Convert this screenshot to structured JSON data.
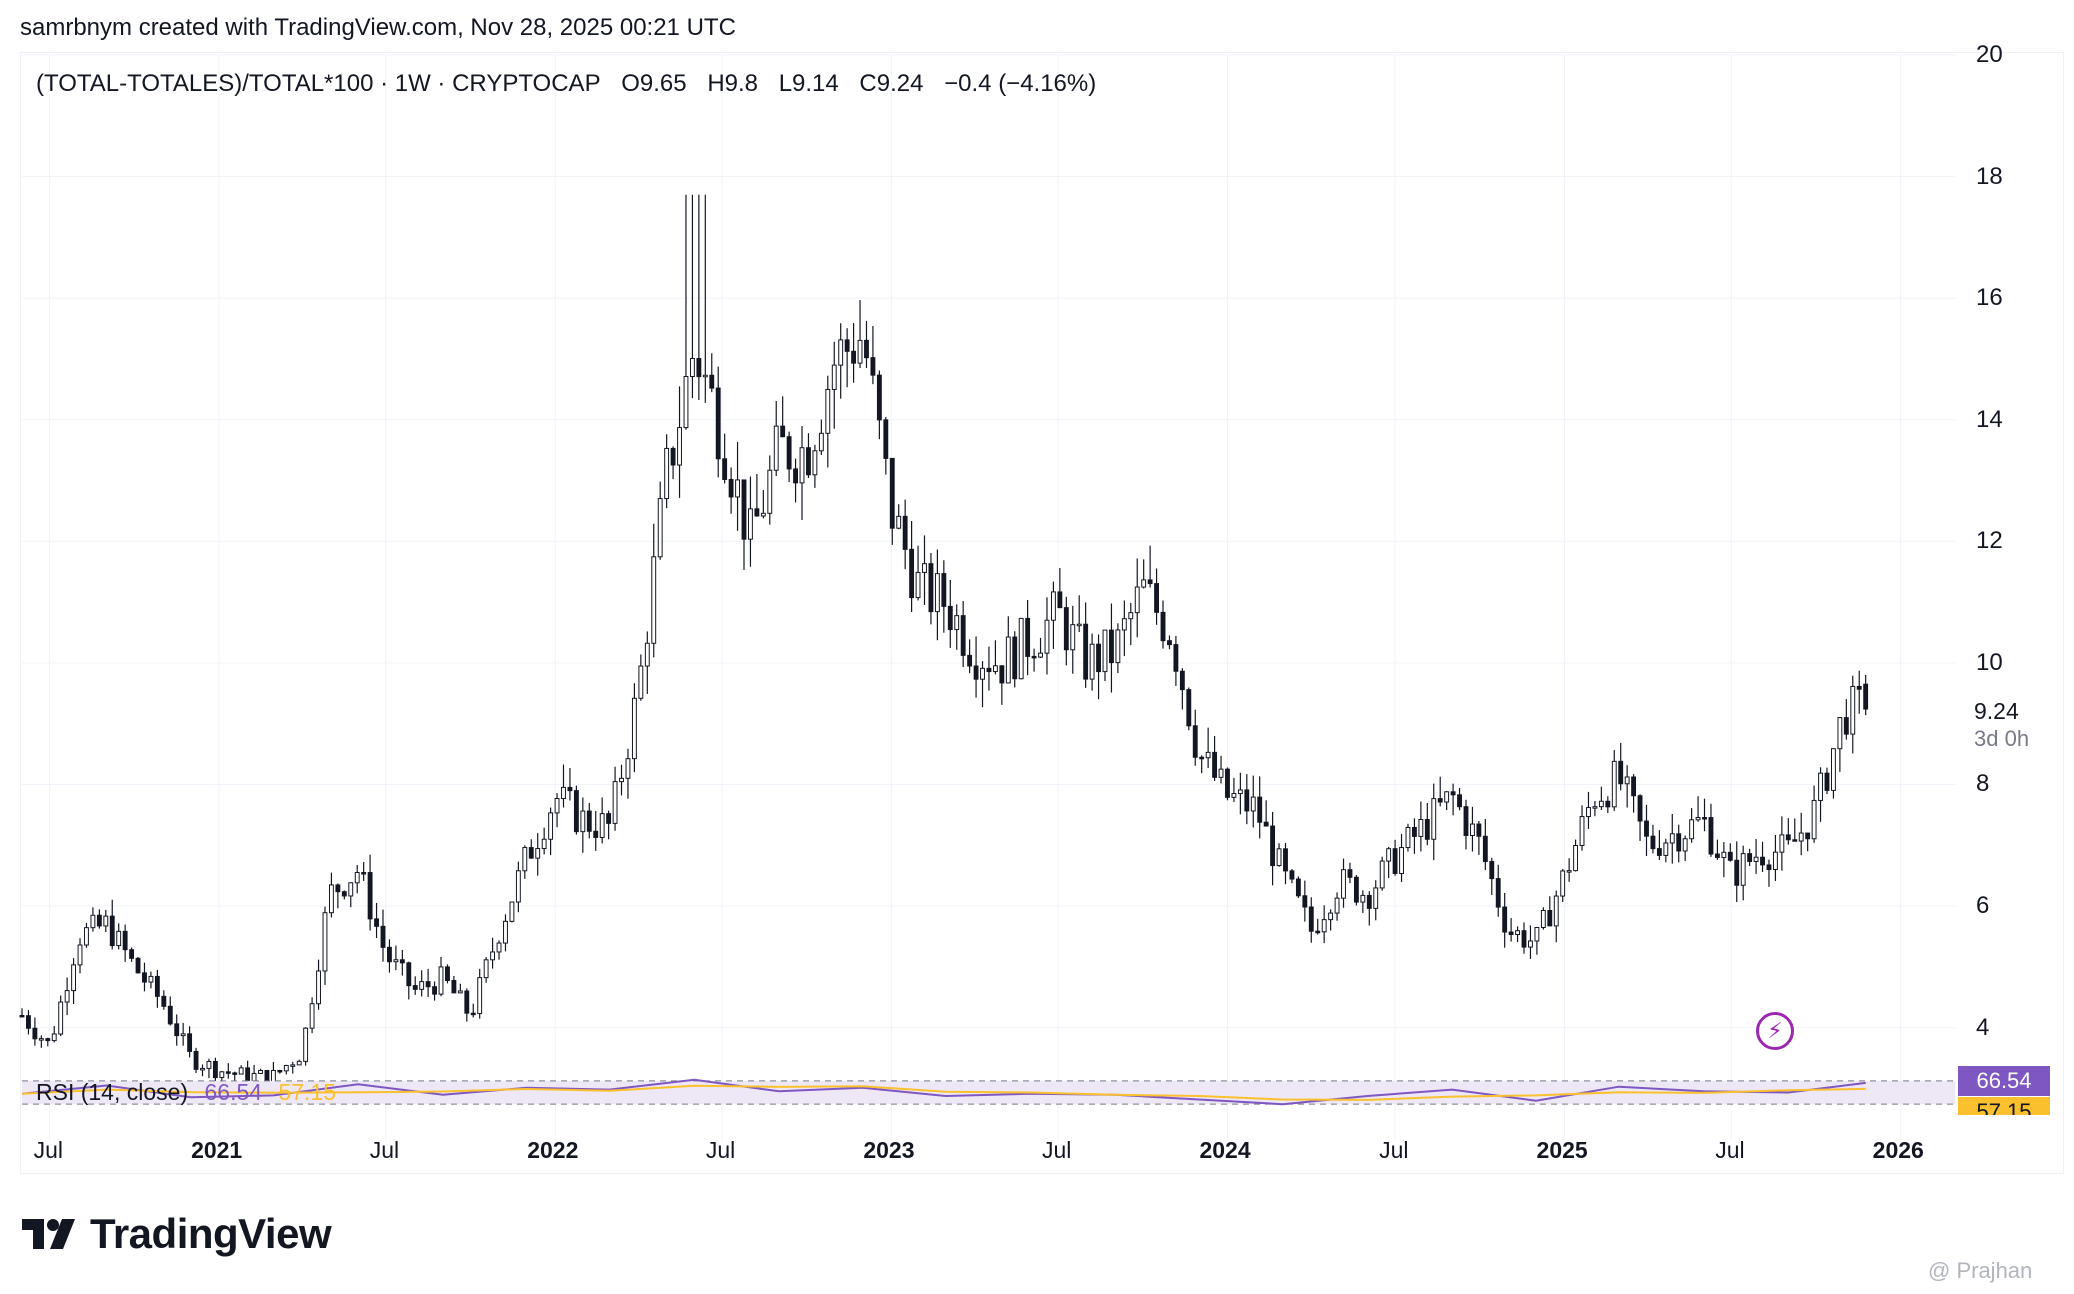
{
  "header": {
    "created_by": "samrbnym created with TradingView.com, Nov 28, 2025 00:21 UTC"
  },
  "legend": {
    "symbol": "(TOTAL-TOTALES)/TOTAL*100 · 1W · CRYPTOCAP",
    "open": "O9.65",
    "high": "H9.8",
    "low": "L9.14",
    "close": "C9.24",
    "change": "−0.4 (−4.16%)"
  },
  "rsi_legend": {
    "name": "RSI (14, close)",
    "value": "66.54",
    "ma": "57.15"
  },
  "price_tag": "9.24",
  "countdown": "3d 0h",
  "rsi_tags": {
    "rsi": "66.54",
    "ma": "57.15"
  },
  "y_axis_labels": [
    "20",
    "18",
    "16",
    "14",
    "12",
    "10",
    "8",
    "6",
    "4"
  ],
  "x_axis_labels": [
    {
      "text": "Jul",
      "bold": false
    },
    {
      "text": "2021",
      "bold": true
    },
    {
      "text": "Jul",
      "bold": false
    },
    {
      "text": "2022",
      "bold": true
    },
    {
      "text": "Jul",
      "bold": false
    },
    {
      "text": "2023",
      "bold": true
    },
    {
      "text": "Jul",
      "bold": false
    },
    {
      "text": "2024",
      "bold": true
    },
    {
      "text": "Jul",
      "bold": false
    },
    {
      "text": "2025",
      "bold": true
    },
    {
      "text": "Jul",
      "bold": false
    },
    {
      "text": "2026",
      "bold": true
    }
  ],
  "brand": "TradingView",
  "watermark": "@ Prajhan",
  "colors": {
    "candle": "#131722",
    "rsi": "#7e57c2",
    "rsi_ma": "#fbc02d",
    "rsi_band": "#ede7f6",
    "bolt": "#9c27b0"
  },
  "chart_data": {
    "type": "candlestick",
    "timeframe": "1W",
    "ylim": [
      3.5,
      20
    ],
    "x_range": [
      "2020-06-01",
      "2026-03-01"
    ],
    "close_series": [
      [
        "2020-06-01",
        4.2
      ],
      [
        "2020-07-01",
        3.7
      ],
      [
        "2020-08-01",
        5.5
      ],
      [
        "2020-09-01",
        5.7
      ],
      [
        "2020-10-01",
        5.0
      ],
      [
        "2020-11-01",
        4.4
      ],
      [
        "2020-12-01",
        3.5
      ],
      [
        "2021-01-01",
        3.3
      ],
      [
        "2021-02-01",
        3.2
      ],
      [
        "2021-03-01",
        3.2
      ],
      [
        "2021-04-01",
        3.6
      ],
      [
        "2021-05-01",
        6.2
      ],
      [
        "2021-06-01",
        6.6
      ],
      [
        "2021-07-01",
        5.2
      ],
      [
        "2021-08-01",
        4.6
      ],
      [
        "2021-09-01",
        4.8
      ],
      [
        "2021-10-01",
        4.2
      ],
      [
        "2021-11-01",
        5.6
      ],
      [
        "2021-12-01",
        6.8
      ],
      [
        "2022-01-01",
        7.8
      ],
      [
        "2022-02-01",
        7.4
      ],
      [
        "2022-03-01",
        7.3
      ],
      [
        "2022-04-01",
        9.5
      ],
      [
        "2022-05-01",
        13.0
      ],
      [
        "2022-06-01",
        15.2
      ],
      [
        "2022-07-01",
        13.8
      ],
      [
        "2022-08-01",
        12.0
      ],
      [
        "2022-09-01",
        13.5
      ],
      [
        "2022-10-01",
        13.5
      ],
      [
        "2022-11-01",
        15.0
      ],
      [
        "2022-12-01",
        15.4
      ],
      [
        "2023-01-01",
        12.5
      ],
      [
        "2023-02-01",
        11.2
      ],
      [
        "2023-03-01",
        11.0
      ],
      [
        "2023-04-01",
        10.2
      ],
      [
        "2023-05-01",
        10.0
      ],
      [
        "2023-06-01",
        10.4
      ],
      [
        "2023-07-01",
        10.8
      ],
      [
        "2023-08-01",
        10.0
      ],
      [
        "2023-09-01",
        10.2
      ],
      [
        "2023-10-01",
        11.2
      ],
      [
        "2023-11-01",
        10.5
      ],
      [
        "2023-12-01",
        8.5
      ],
      [
        "2024-01-01",
        7.8
      ],
      [
        "2024-02-01",
        7.6
      ],
      [
        "2024-03-01",
        6.5
      ],
      [
        "2024-04-01",
        5.6
      ],
      [
        "2024-05-01",
        6.4
      ],
      [
        "2024-06-01",
        6.2
      ],
      [
        "2024-07-01",
        6.8
      ],
      [
        "2024-08-01",
        7.3
      ],
      [
        "2024-09-01",
        7.8
      ],
      [
        "2024-10-01",
        7.0
      ],
      [
        "2024-11-01",
        5.6
      ],
      [
        "2024-12-01",
        5.4
      ],
      [
        "2025-01-01",
        6.5
      ],
      [
        "2025-02-01",
        7.8
      ],
      [
        "2025-03-01",
        8.1
      ],
      [
        "2025-04-01",
        7.0
      ],
      [
        "2025-05-01",
        7.2
      ],
      [
        "2025-06-01",
        7.4
      ],
      [
        "2025-07-01",
        6.5
      ],
      [
        "2025-08-01",
        6.9
      ],
      [
        "2025-09-01",
        6.9
      ],
      [
        "2025-10-01",
        7.6
      ],
      [
        "2025-11-01",
        9.2
      ],
      [
        "2025-11-24",
        9.24
      ]
    ],
    "peak_high": {
      "date": "2022-06-01",
      "value": 17.7
    },
    "last_candle": {
      "open": 9.65,
      "high": 9.8,
      "low": 9.14,
      "close": 9.24,
      "change": -0.4,
      "change_pct": -4.16
    },
    "rsi": {
      "period": 14,
      "last": 66.54,
      "ma_last": 57.15,
      "band": [
        30,
        70
      ],
      "values": [
        [
          "2020-06-01",
          48
        ],
        [
          "2020-09-01",
          62
        ],
        [
          "2020-12-01",
          42
        ],
        [
          "2021-03-01",
          45
        ],
        [
          "2021-06-01",
          64
        ],
        [
          "2021-09-01",
          46
        ],
        [
          "2021-12-01",
          58
        ],
        [
          "2022-03-01",
          55
        ],
        [
          "2022-06-01",
          72
        ],
        [
          "2022-09-01",
          52
        ],
        [
          "2022-12-01",
          58
        ],
        [
          "2023-03-01",
          44
        ],
        [
          "2023-06-01",
          48
        ],
        [
          "2023-09-01",
          46
        ],
        [
          "2023-12-01",
          38
        ],
        [
          "2024-03-01",
          30
        ],
        [
          "2024-06-01",
          44
        ],
        [
          "2024-09-01",
          55
        ],
        [
          "2024-12-01",
          36
        ],
        [
          "2025-03-01",
          60
        ],
        [
          "2025-06-01",
          52
        ],
        [
          "2025-09-01",
          50
        ],
        [
          "2025-11-24",
          66.54
        ]
      ]
    }
  }
}
